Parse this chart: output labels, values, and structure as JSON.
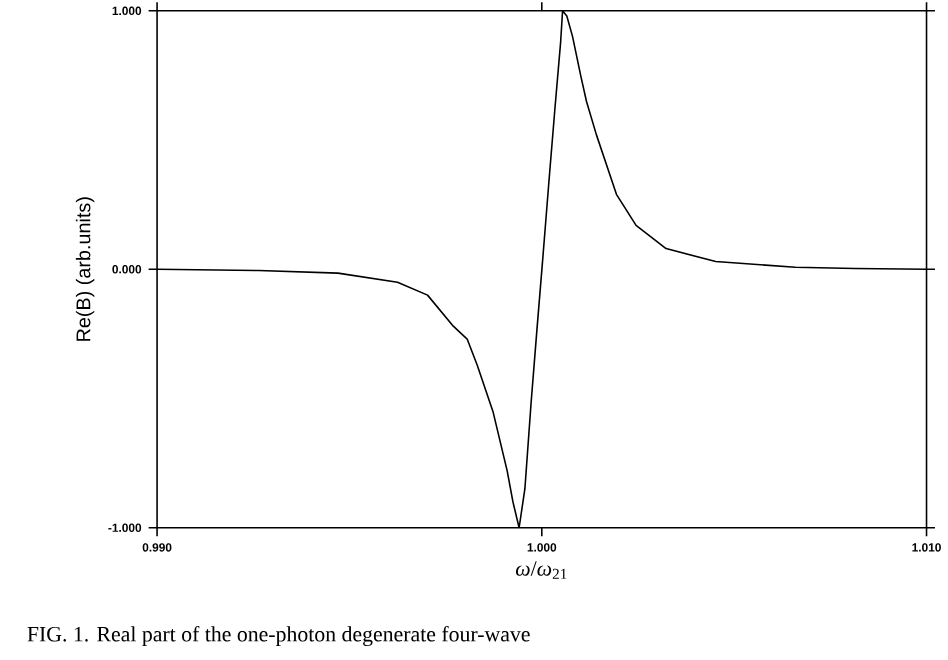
{
  "chart_data": {
    "type": "line",
    "xlabel": "*ω*/*ω*$_{21}$",
    "ylabel": "Re(B) (arb.units)",
    "annotations": [
      "FIG. 1. Real part of the one-photon degenerate four-wave"
    ],
    "x": [
      0.99,
      0.99264,
      0.9947,
      0.99625,
      0.99703,
      0.9977,
      0.99806,
      0.99832,
      0.99873,
      0.9991,
      0.99925,
      0.99941,
      0.99956,
      0.99972,
      0.99987,
      1.00003,
      1.00018,
      1.00034,
      1.00049,
      1.00054,
      1.00065,
      1.0008,
      1.00101,
      1.00116,
      1.00142,
      1.00194,
      1.00245,
      1.00323,
      1.00452,
      1.00659,
      1.00814,
      1.01
    ],
    "series": [
      {
        "color": "#000000",
        "values": [
          0,
          -0.005,
          -0.015,
          -0.05,
          -0.1,
          -0.22,
          -0.27,
          -0.37,
          -0.55,
          -0.78,
          -0.9,
          -1.0,
          -0.85,
          -0.52,
          -0.24,
          0.05,
          0.33,
          0.62,
          0.88,
          1.0,
          0.98,
          0.9,
          0.75,
          0.65,
          0.52,
          0.29,
          0.17,
          0.08,
          0.03,
          0.008,
          0.003,
          0
        ]
      }
    ],
    "xlim": [
      0.99,
      1.01
    ],
    "ylim": [
      -1,
      1
    ],
    "xticks": [
      {
        "value": 0.99,
        "label": "0.990"
      },
      {
        "value": 1.0,
        "label": "1.000"
      },
      {
        "value": 1.01,
        "label": "1.010"
      }
    ],
    "yticks": [
      {
        "value": -1,
        "label": "-1.000"
      },
      {
        "value": 0,
        "label": "0.000"
      },
      {
        "value": 1,
        "label": "1.000"
      }
    ],
    "grid": false,
    "marker": "none",
    "line_style": "solid"
  }
}
